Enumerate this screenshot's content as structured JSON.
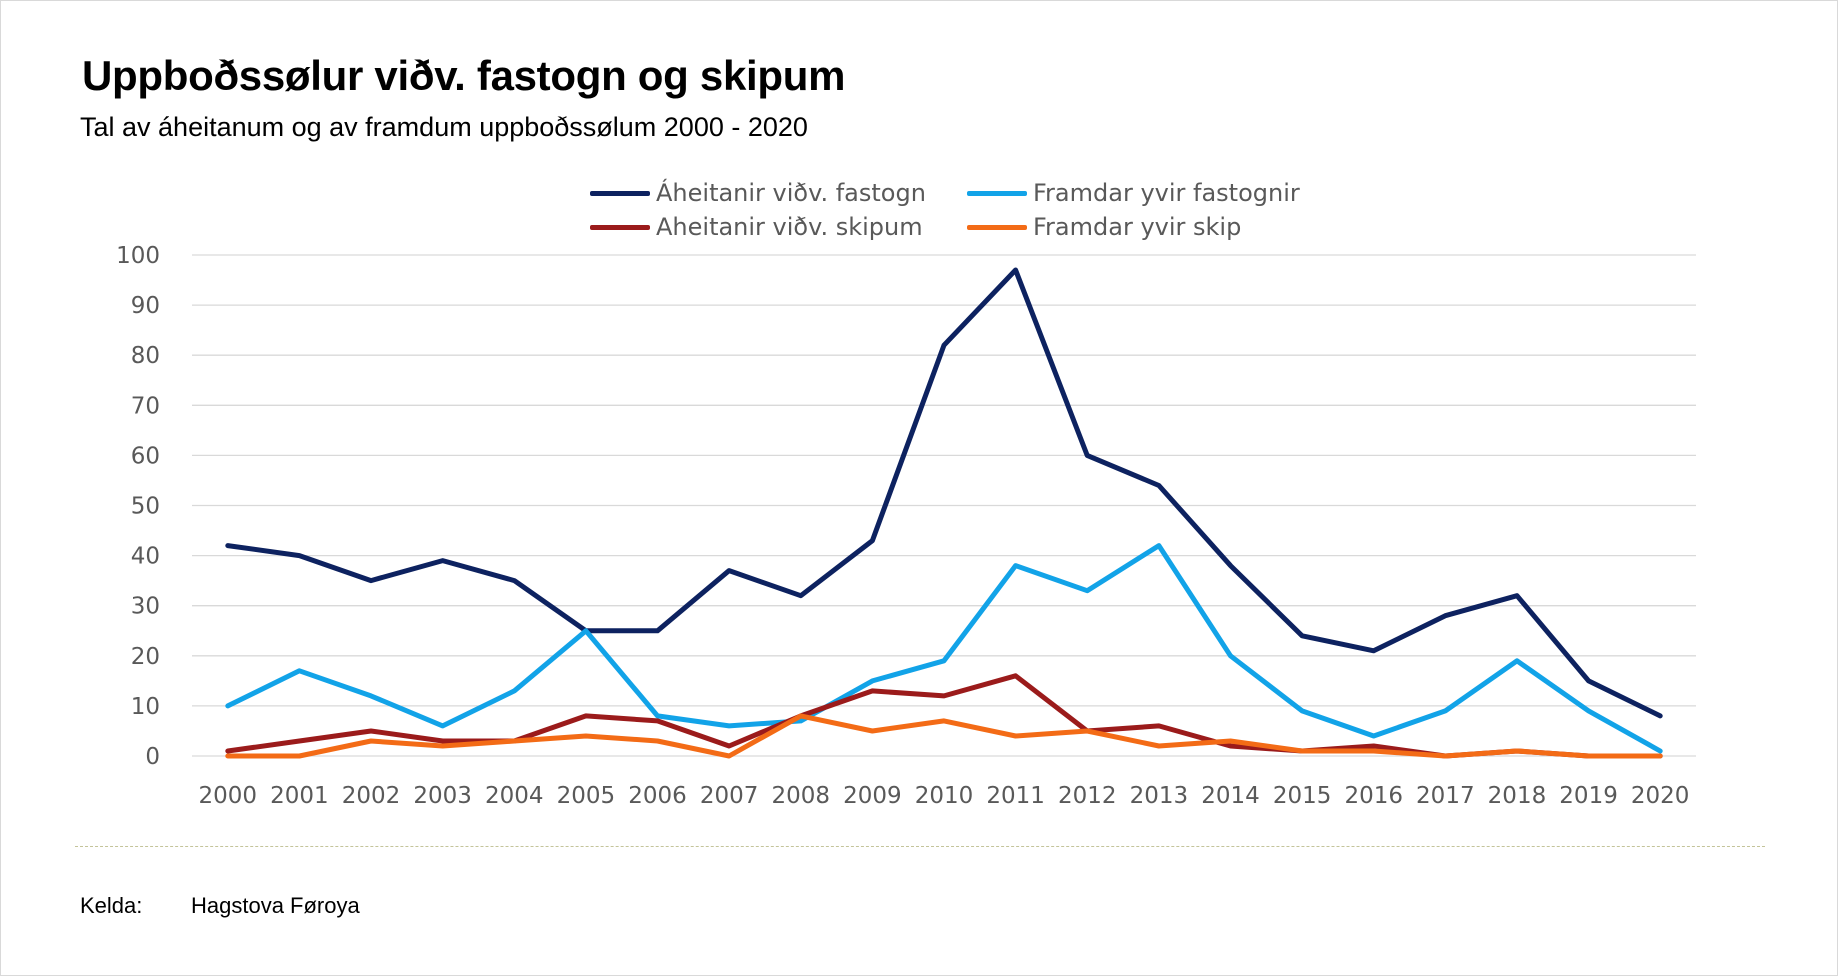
{
  "chart_data": {
    "type": "line",
    "title": "Uppboðssølur viðv. fastogn og skipum",
    "subtitle": "Tal av áheitanum og av framdum uppboðssølum 2000 - 2020",
    "categories": [
      "2000",
      "2001",
      "2002",
      "2003",
      "2004",
      "2005",
      "2006",
      "2007",
      "2008",
      "2009",
      "2010",
      "2011",
      "2012",
      "2013",
      "2014",
      "2015",
      "2016",
      "2017",
      "2018",
      "2019",
      "2020"
    ],
    "ylim": [
      0,
      100
    ],
    "yticks": [
      0,
      10,
      20,
      30,
      40,
      50,
      60,
      70,
      80,
      90,
      100
    ],
    "grid": true,
    "legend_position": "top",
    "series": [
      {
        "name": "Áheitanir viðv. fastogn",
        "color": "#0d2260",
        "values": [
          42,
          40,
          35,
          39,
          35,
          25,
          25,
          37,
          32,
          43,
          82,
          97,
          60,
          54,
          38,
          24,
          21,
          28,
          32,
          15,
          8
        ]
      },
      {
        "name": "Framdar yvir fastognir",
        "color": "#12a3e8",
        "values": [
          10,
          17,
          12,
          6,
          13,
          25,
          8,
          6,
          7,
          15,
          19,
          38,
          33,
          42,
          20,
          9,
          4,
          9,
          19,
          9,
          1
        ]
      },
      {
        "name": "Aheitanir viðv. skipum",
        "color": "#9b1b1b",
        "values": [
          1,
          3,
          5,
          3,
          3,
          8,
          7,
          2,
          8,
          13,
          12,
          16,
          5,
          6,
          2,
          1,
          2,
          0,
          1,
          0,
          0
        ]
      },
      {
        "name": "Framdar yvir skip",
        "color": "#f36b16",
        "values": [
          0,
          0,
          3,
          2,
          3,
          4,
          3,
          0,
          8,
          5,
          7,
          4,
          5,
          2,
          3,
          1,
          1,
          0,
          1,
          0,
          0
        ]
      }
    ]
  },
  "source": {
    "label": "Kelda:",
    "value": "Hagstova Føroya"
  }
}
